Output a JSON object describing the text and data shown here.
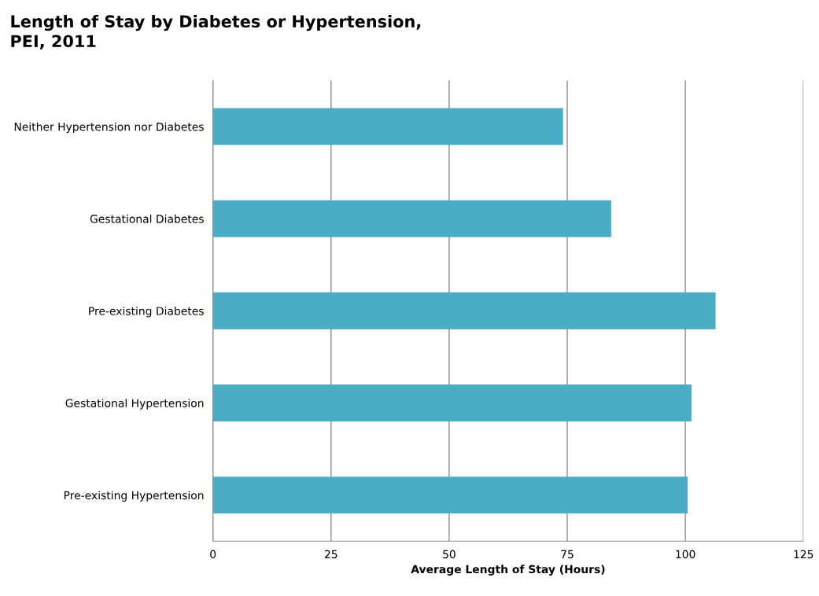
{
  "chart_data": {
    "type": "bar",
    "orientation": "horizontal",
    "title": "Length of Stay by Diabetes or Hypertension,\nPEI, 2011",
    "xlabel": "Average Length of Stay (Hours)",
    "categories": [
      "Neither Hypertension nor Diabetes",
      "Gestational Diabetes",
      "Pre-existing Diabetes",
      "Gestational Hypertension",
      "Pre-existing Hypertension"
    ],
    "values": [
      74.1,
      84.3,
      106.4,
      101.3,
      100.5
    ],
    "color": "#4bacc6",
    "xlim": [
      0,
      125
    ],
    "xticks": [
      0,
      25,
      50,
      75,
      100,
      125
    ],
    "grid": "x",
    "legend": false
  }
}
